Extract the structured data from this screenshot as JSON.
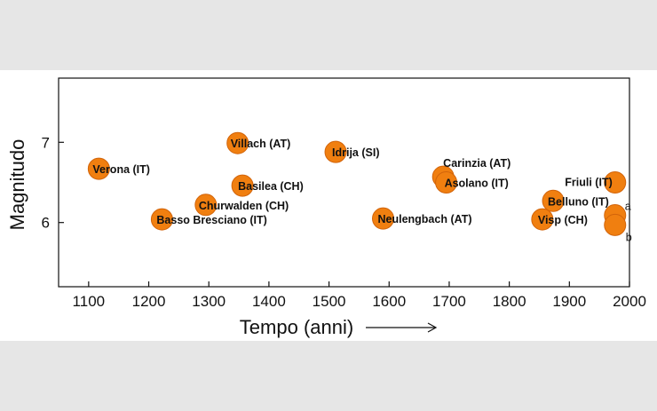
{
  "chart_data": {
    "type": "scatter",
    "xlabel": "Tempo (anni)",
    "ylabel": "Magnitudo",
    "xlim": [
      1050,
      2000
    ],
    "ylim": [
      5.2,
      7.8
    ],
    "x_ticks": [
      1100,
      1200,
      1300,
      1400,
      1500,
      1600,
      1700,
      1800,
      1900,
      2000
    ],
    "y_ticks": [
      6,
      7
    ],
    "marker_color": "#f07f10",
    "marker_edge_color": "#d2640a",
    "points": [
      {
        "label": "Verona (IT)",
        "x": 1117,
        "y": 6.67
      },
      {
        "label": "Basso Bresciano (IT)",
        "x": 1222,
        "y": 6.04
      },
      {
        "label": "Churwalden (CH)",
        "x": 1295,
        "y": 6.22
      },
      {
        "label": "Villach (AT)",
        "x": 1348,
        "y": 6.99
      },
      {
        "label": "Basilea (CH)",
        "x": 1356,
        "y": 6.46
      },
      {
        "label": "Idrija (SI)",
        "x": 1511,
        "y": 6.88
      },
      {
        "label": "Neulengbach (AT)",
        "x": 1590,
        "y": 6.05
      },
      {
        "label": "Carinzia (AT)",
        "x": 1690,
        "y": 6.57
      },
      {
        "label": "Asolano (IT)",
        "x": 1695,
        "y": 6.5
      },
      {
        "label": "Visp (CH)",
        "x": 1855,
        "y": 6.04
      },
      {
        "label": "Belluno (IT)",
        "x": 1873,
        "y": 6.27
      },
      {
        "label": "Friuli (IT)",
        "x": 1976,
        "y": 6.5
      },
      {
        "label": "a",
        "x": 1976,
        "y": 6.09
      },
      {
        "label": "b",
        "x": 1976,
        "y": 5.97
      }
    ]
  }
}
